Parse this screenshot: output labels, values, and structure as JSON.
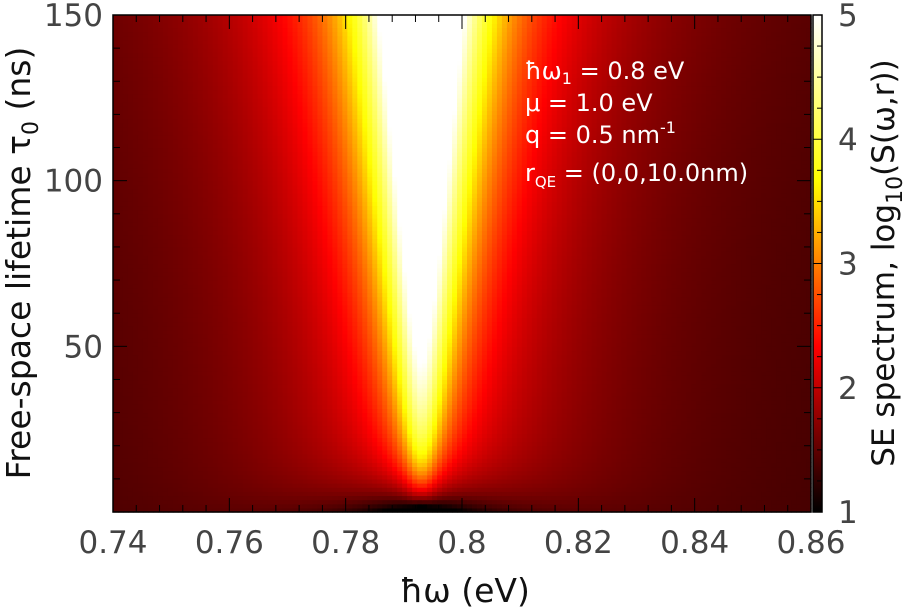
{
  "chart_data": {
    "type": "heatmap",
    "xlabel": "ħω (eV)",
    "ylabel": "Free-space lifetime τ",
    "ylabel_subscript": "0",
    "ylabel_suffix": " (ns)",
    "xlim": [
      0.74,
      0.86
    ],
    "ylim": [
      0,
      150
    ],
    "x_ticks": [
      "0.74",
      "0.76",
      "0.78",
      "0.8",
      "0.82",
      "0.84",
      "0.86"
    ],
    "x_tick_values": [
      0.74,
      0.76,
      0.78,
      0.8,
      0.82,
      0.84,
      0.86
    ],
    "y_ticks": [
      "50",
      "100",
      "150"
    ],
    "y_tick_values": [
      50,
      100,
      150
    ],
    "colorbar": {
      "label_prefix": "SE spectrum, log",
      "label_subscript": "10",
      "label_suffix": "(S(ω,r))",
      "range": [
        1,
        5
      ],
      "ticks": [
        "1",
        "2",
        "3",
        "4",
        "5"
      ],
      "tick_values": [
        1,
        2,
        3,
        4,
        5
      ],
      "colormap": "hot",
      "colors": [
        "#000000",
        "#ff0000",
        "#ffff00",
        "#ffffff"
      ]
    },
    "peak": {
      "center_ev": 0.793,
      "trend": "resonance near 0.793 eV; peak saturates (≥5) for larger τ0, minimum (~1) at 0.793 eV for smallest τ0; background decays to ~1.3 at spectrum edges"
    },
    "annotations": {
      "line1_prefix": "ħω",
      "line1_sub": "1",
      "line1_suffix": " = 0.8 eV",
      "line2": "μ = 1.0 eV",
      "line3_prefix": "q = 0.5 nm",
      "line3_sup": "-1",
      "line4_prefix": "r",
      "line4_sub": "QE",
      "line4_suffix": " = (0,0,10.0nm)"
    }
  }
}
